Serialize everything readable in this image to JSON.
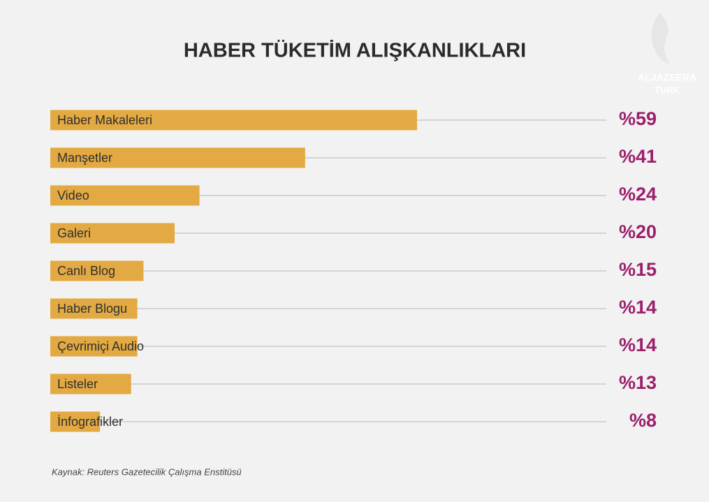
{
  "chart_data": {
    "type": "bar",
    "orientation": "horizontal",
    "title": "HABER TÜKETİM ALIŞKANLIKLARI",
    "categories": [
      "Haber Makaleleri",
      "Manşetler",
      "Video",
      "Galeri",
      "Canlı Blog",
      "Haber Blogu",
      "Çevrimiçi Audio",
      "Listeler",
      "İnfografikler"
    ],
    "values": [
      59,
      41,
      24,
      20,
      15,
      14,
      14,
      13,
      8
    ],
    "value_labels": [
      "%59",
      "%41",
      "%24",
      "%20",
      "%15",
      "%14",
      "%14",
      "%13",
      "%8"
    ],
    "color": "#e3a942",
    "label_color": "#9c1f6b",
    "source": "Kaynak: Reuters Gazetecilik Çalışma Enstitüsü"
  },
  "logo": {
    "name": "ALJAZEERA",
    "region": "TURK"
  }
}
